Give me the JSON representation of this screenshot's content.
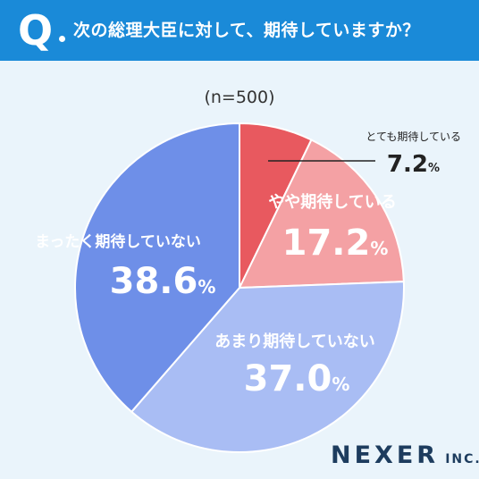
{
  "header": {
    "q_mark": "Q",
    "question": "次の総理大臣に対して、期待していますか？"
  },
  "sample_size": "(n=500)",
  "brand": {
    "name": "NEXER",
    "suffix": "INC."
  },
  "colors": {
    "header_bg": "#1a8ad8",
    "slice_1": "#e8595f",
    "slice_2": "#f4a1a4",
    "slice_3": "#a9bdf4",
    "slice_4": "#6e8fe8"
  },
  "chart_data": {
    "type": "pie",
    "labels": [
      "とても期待している",
      "やや期待している",
      "あまり期待していない",
      "まったく期待していない"
    ],
    "values": [
      7.2,
      17.2,
      37.0,
      38.6
    ],
    "display_values": [
      "7.2",
      "17.2",
      "37.0",
      "38.6"
    ],
    "unit": "%",
    "start": "top",
    "direction": "clockwise"
  }
}
